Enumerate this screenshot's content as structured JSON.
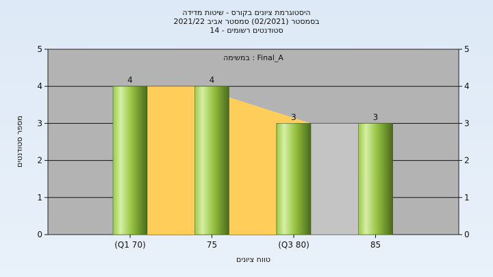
{
  "chart_data": {
    "type": "bar",
    "title_lines": [
      "היסטוגרמת ציונים בקורס - שיטות מדידה",
      "בסמסטר  (02/2021)  סמסטר אביב 2021/22",
      "סטודנטים רשומים - 14"
    ],
    "assignment_label": "במשימה : Final_A",
    "xlabel": "טווח ציונים",
    "ylabel": "מספר סטודנטים",
    "categories": [
      "(Q1 70)",
      "75",
      "(Q3 80)",
      "85"
    ],
    "values": [
      4,
      4,
      3,
      3
    ],
    "data_labels": [
      "4",
      "4",
      "3",
      "3"
    ],
    "yticks": [
      "0",
      "1",
      "2",
      "3",
      "4",
      "5"
    ],
    "ylim": [
      0,
      5
    ],
    "grid": true,
    "colors": {
      "plot_bg": "#b3b3b3",
      "bar_light": "#cfe99a",
      "bar_mid": "#8fbf3a",
      "bar_dark": "#4f6e1e",
      "area_orange": "#ffce5a",
      "area_grey": "#c4c4c4"
    }
  }
}
